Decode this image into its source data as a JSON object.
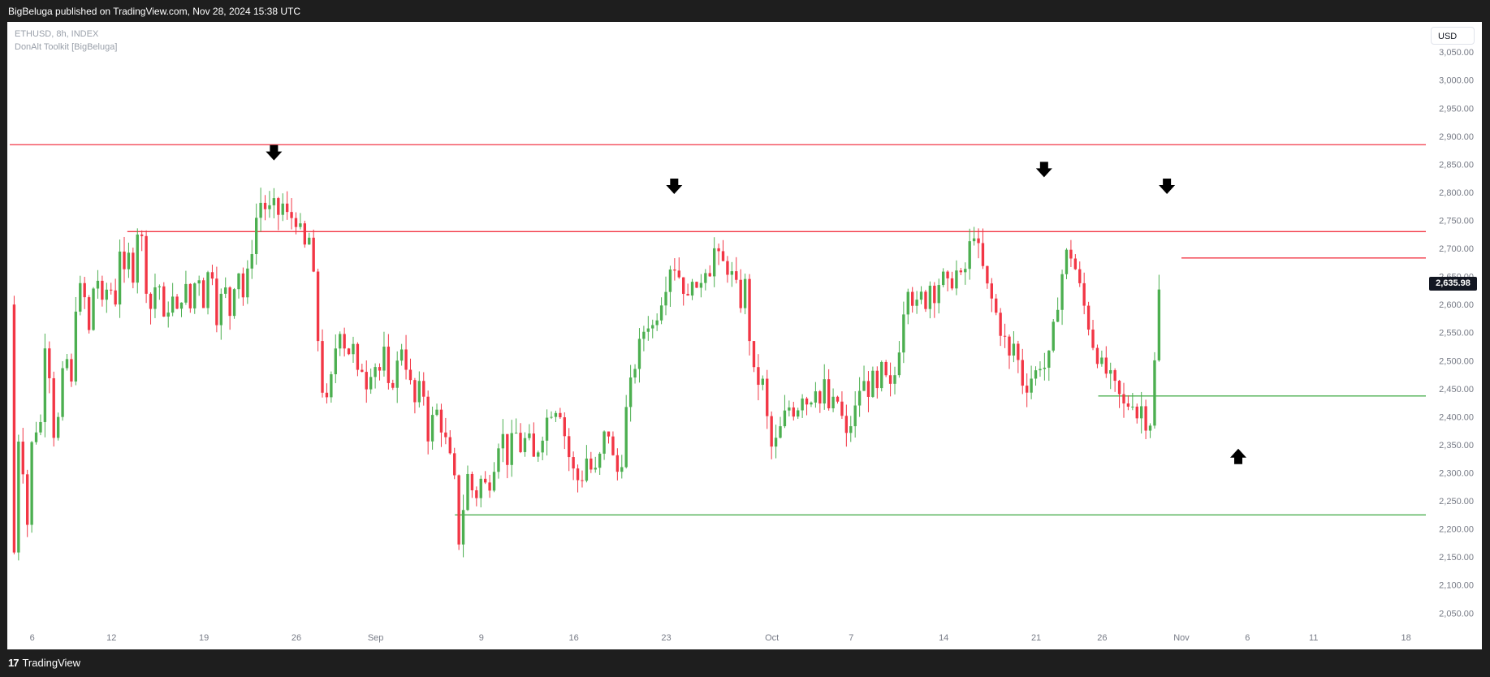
{
  "header": {
    "published": "BigBeluga published on TradingView.com, Nov 28, 2024 15:38 UTC"
  },
  "legend": {
    "symbol": "ETHUSD, 8h, INDEX",
    "indicator": "DonAlt Toolkit [BigBeluga]"
  },
  "scale": {
    "currency": "USD"
  },
  "last_price": "2,635.98",
  "footer": {
    "brand": "TradingView"
  },
  "colors": {
    "up": "#4caf50",
    "down": "#f23645",
    "resistance": "#f23645",
    "support": "#4caf50",
    "arrow": "#000000"
  },
  "chart_data": {
    "type": "candlestick",
    "symbol": "ETHUSD",
    "timeframe": "8h",
    "ylim": [
      2020,
      3085
    ],
    "y_ticks": [
      "2,050.00",
      "2,100.00",
      "2,150.00",
      "2,200.00",
      "2,250.00",
      "2,300.00",
      "2,350.00",
      "2,400.00",
      "2,450.00",
      "2,500.00",
      "2,550.00",
      "2,600.00",
      "2,650.00",
      "2,700.00",
      "2,750.00",
      "2,800.00",
      "2,850.00",
      "2,900.00",
      "2,950.00",
      "3,000.00",
      "3,050.00"
    ],
    "y_tick_values": [
      2050,
      2100,
      2150,
      2200,
      2250,
      2300,
      2350,
      2400,
      2450,
      2500,
      2550,
      2600,
      2650,
      2700,
      2750,
      2800,
      2850,
      2900,
      2950,
      3000,
      3050
    ],
    "x_ticks": [
      {
        "label": "6",
        "day": 6
      },
      {
        "label": "12",
        "day": 12
      },
      {
        "label": "19",
        "day": 19
      },
      {
        "label": "26",
        "day": 26
      },
      {
        "label": "Sep",
        "day": 32
      },
      {
        "label": "9",
        "day": 40
      },
      {
        "label": "16",
        "day": 47
      },
      {
        "label": "23",
        "day": 54
      },
      {
        "label": "Oct",
        "day": 62
      },
      {
        "label": "7",
        "day": 68
      },
      {
        "label": "14",
        "day": 75
      },
      {
        "label": "21",
        "day": 82
      },
      {
        "label": "26",
        "day": 87
      },
      {
        "label": "Nov",
        "day": 93
      },
      {
        "label": "6",
        "day": 98
      },
      {
        "label": "11",
        "day": 103
      },
      {
        "label": "18",
        "day": 110
      }
    ],
    "xlim": [
      4.3,
      111.5
    ],
    "levels": [
      {
        "kind": "resistance",
        "price": 2885,
        "from_day": 4.3
      },
      {
        "kind": "resistance",
        "price": 2730,
        "from_day": 13.2
      },
      {
        "kind": "resistance",
        "price": 2683,
        "from_day": 93.0
      },
      {
        "kind": "support",
        "price": 2437,
        "from_day": 86.7
      },
      {
        "kind": "support",
        "price": 2225,
        "from_day": 38.0
      }
    ],
    "arrows": [
      {
        "dir": "down",
        "day": 24.3,
        "price": 2870
      },
      {
        "dir": "down",
        "day": 54.6,
        "price": 2810
      },
      {
        "dir": "down",
        "day": 82.6,
        "price": 2840
      },
      {
        "dir": "down",
        "day": 91.9,
        "price": 2810
      },
      {
        "dir": "up",
        "day": 97.3,
        "price": 2330
      }
    ],
    "path": [
      [
        4.3,
        2600
      ],
      [
        4.7,
        2070
      ],
      [
        5.0,
        2400
      ],
      [
        5.7,
        2190
      ],
      [
        6.1,
        2430
      ],
      [
        6.5,
        2330
      ],
      [
        7.0,
        2550
      ],
      [
        7.3,
        2480
      ],
      [
        7.7,
        2350
      ],
      [
        8.0,
        2400
      ],
      [
        8.5,
        2520
      ],
      [
        9.0,
        2450
      ],
      [
        9.3,
        2600
      ],
      [
        9.8,
        2640
      ],
      [
        10.3,
        2550
      ],
      [
        10.8,
        2670
      ],
      [
        11.4,
        2580
      ],
      [
        11.8,
        2660
      ],
      [
        12.2,
        2580
      ],
      [
        12.7,
        2720
      ],
      [
        13.0,
        2640
      ],
      [
        13.4,
        2700
      ],
      [
        13.7,
        2640
      ],
      [
        14.1,
        2780
      ],
      [
        14.5,
        2650
      ],
      [
        15.0,
        2590
      ],
      [
        15.5,
        2660
      ],
      [
        16.0,
        2560
      ],
      [
        16.5,
        2620
      ],
      [
        17.0,
        2580
      ],
      [
        17.5,
        2640
      ],
      [
        18.0,
        2590
      ],
      [
        18.5,
        2670
      ],
      [
        19.0,
        2600
      ],
      [
        19.5,
        2690
      ],
      [
        20.0,
        2570
      ],
      [
        20.5,
        2640
      ],
      [
        21.0,
        2580
      ],
      [
        21.5,
        2680
      ],
      [
        22.0,
        2610
      ],
      [
        22.5,
        2680
      ],
      [
        23.0,
        2760
      ],
      [
        23.4,
        2790
      ],
      [
        23.8,
        2760
      ],
      [
        24.2,
        2780
      ],
      [
        24.6,
        2760
      ],
      [
        25.0,
        2780
      ],
      [
        25.4,
        2750
      ],
      [
        25.8,
        2760
      ],
      [
        26.2,
        2740
      ],
      [
        26.6,
        2700
      ],
      [
        27.0,
        2720
      ],
      [
        27.4,
        2620
      ],
      [
        27.8,
        2480
      ],
      [
        28.2,
        2410
      ],
      [
        28.6,
        2460
      ],
      [
        29.0,
        2530
      ],
      [
        29.4,
        2570
      ],
      [
        29.8,
        2500
      ],
      [
        30.2,
        2540
      ],
      [
        30.6,
        2470
      ],
      [
        31.0,
        2490
      ],
      [
        31.4,
        2450
      ],
      [
        31.8,
        2510
      ],
      [
        32.2,
        2470
      ],
      [
        32.6,
        2520
      ],
      [
        33.0,
        2440
      ],
      [
        33.5,
        2480
      ],
      [
        34.0,
        2530
      ],
      [
        34.5,
        2470
      ],
      [
        35.0,
        2420
      ],
      [
        35.5,
        2470
      ],
      [
        36.0,
        2360
      ],
      [
        36.5,
        2420
      ],
      [
        37.0,
        2380
      ],
      [
        37.5,
        2340
      ],
      [
        38.0,
        2280
      ],
      [
        38.3,
        2180
      ],
      [
        38.7,
        2250
      ],
      [
        39.0,
        2300
      ],
      [
        39.5,
        2250
      ],
      [
        40.0,
        2290
      ],
      [
        40.5,
        2270
      ],
      [
        41.0,
        2320
      ],
      [
        41.5,
        2380
      ],
      [
        42.0,
        2320
      ],
      [
        42.5,
        2380
      ],
      [
        43.0,
        2340
      ],
      [
        43.5,
        2370
      ],
      [
        44.0,
        2320
      ],
      [
        44.5,
        2360
      ],
      [
        45.0,
        2400
      ],
      [
        45.5,
        2420
      ],
      [
        46.0,
        2410
      ],
      [
        46.5,
        2340
      ],
      [
        47.0,
        2300
      ],
      [
        47.5,
        2280
      ],
      [
        48.0,
        2330
      ],
      [
        48.5,
        2290
      ],
      [
        49.0,
        2330
      ],
      [
        49.5,
        2390
      ],
      [
        50.0,
        2320
      ],
      [
        50.5,
        2290
      ],
      [
        51.0,
        2420
      ],
      [
        51.5,
        2480
      ],
      [
        52.0,
        2530
      ],
      [
        52.5,
        2570
      ],
      [
        53.0,
        2560
      ],
      [
        53.5,
        2600
      ],
      [
        54.0,
        2640
      ],
      [
        54.4,
        2680
      ],
      [
        54.8,
        2660
      ],
      [
        55.2,
        2640
      ],
      [
        55.6,
        2600
      ],
      [
        56.0,
        2660
      ],
      [
        56.4,
        2600
      ],
      [
        56.8,
        2680
      ],
      [
        57.2,
        2650
      ],
      [
        57.6,
        2700
      ],
      [
        58.0,
        2680
      ],
      [
        58.4,
        2670
      ],
      [
        58.8,
        2660
      ],
      [
        59.2,
        2640
      ],
      [
        59.6,
        2600
      ],
      [
        60.0,
        2640
      ],
      [
        60.4,
        2510
      ],
      [
        60.8,
        2450
      ],
      [
        61.2,
        2480
      ],
      [
        61.6,
        2400
      ],
      [
        62.0,
        2340
      ],
      [
        62.4,
        2360
      ],
      [
        62.8,
        2390
      ],
      [
        63.2,
        2420
      ],
      [
        63.6,
        2410
      ],
      [
        64.0,
        2420
      ],
      [
        64.4,
        2450
      ],
      [
        64.8,
        2410
      ],
      [
        65.2,
        2470
      ],
      [
        65.6,
        2420
      ],
      [
        66.0,
        2460
      ],
      [
        66.4,
        2400
      ],
      [
        66.8,
        2440
      ],
      [
        67.2,
        2410
      ],
      [
        67.6,
        2360
      ],
      [
        68.0,
        2390
      ],
      [
        68.4,
        2420
      ],
      [
        68.8,
        2470
      ],
      [
        69.2,
        2440
      ],
      [
        69.6,
        2470
      ],
      [
        70.0,
        2440
      ],
      [
        70.4,
        2500
      ],
      [
        70.8,
        2440
      ],
      [
        71.2,
        2460
      ],
      [
        71.6,
        2520
      ],
      [
        72.0,
        2600
      ],
      [
        72.4,
        2650
      ],
      [
        72.8,
        2580
      ],
      [
        73.2,
        2620
      ],
      [
        73.6,
        2600
      ],
      [
        74.0,
        2640
      ],
      [
        74.4,
        2610
      ],
      [
        74.8,
        2660
      ],
      [
        75.2,
        2630
      ],
      [
        75.6,
        2640
      ],
      [
        76.0,
        2660
      ],
      [
        76.4,
        2640
      ],
      [
        76.8,
        2680
      ],
      [
        77.2,
        2740
      ],
      [
        77.6,
        2700
      ],
      [
        78.0,
        2660
      ],
      [
        78.4,
        2620
      ],
      [
        78.8,
        2600
      ],
      [
        79.2,
        2560
      ],
      [
        79.6,
        2540
      ],
      [
        80.0,
        2500
      ],
      [
        80.4,
        2540
      ],
      [
        80.8,
        2470
      ],
      [
        81.2,
        2450
      ],
      [
        81.6,
        2470
      ],
      [
        82.0,
        2480
      ],
      [
        82.4,
        2500
      ],
      [
        82.8,
        2480
      ],
      [
        83.2,
        2540
      ],
      [
        83.6,
        2600
      ],
      [
        84.0,
        2660
      ],
      [
        84.4,
        2700
      ],
      [
        84.8,
        2680
      ],
      [
        85.2,
        2640
      ],
      [
        85.6,
        2600
      ],
      [
        86.0,
        2560
      ],
      [
        86.4,
        2520
      ],
      [
        86.8,
        2500
      ],
      [
        87.2,
        2480
      ],
      [
        87.6,
        2470
      ],
      [
        88.0,
        2450
      ],
      [
        88.4,
        2430
      ],
      [
        88.8,
        2410
      ],
      [
        89.2,
        2440
      ],
      [
        89.6,
        2400
      ],
      [
        90.0,
        2420
      ],
      [
        90.4,
        2380
      ],
      [
        90.8,
        2400
      ],
      [
        91.2,
        2630
      ],
      [
        91.6,
        2600
      ]
    ]
  }
}
